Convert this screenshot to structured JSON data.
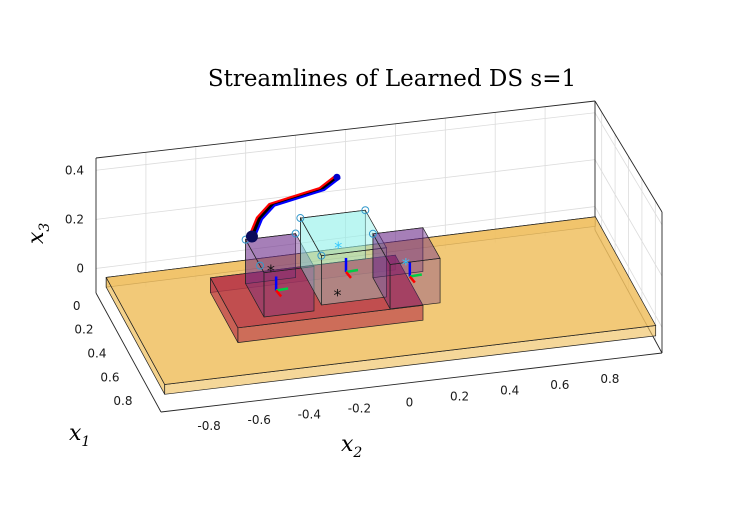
{
  "chart_data": {
    "type": "3d-streamlines",
    "title": "Streamlines of Learned DS s=1",
    "xlabel_main": "x",
    "xlabel_sub": "1",
    "ylabel_main": "x",
    "ylabel_sub": "2",
    "zlabel_main": "x",
    "zlabel_sub": "3",
    "x_ticks": [
      "0",
      "0.2",
      "0.4",
      "0.6",
      "0.8"
    ],
    "y_ticks": [
      "-0.8",
      "-0.6",
      "-0.4",
      "-0.2",
      "0",
      "0.2",
      "0.4",
      "0.6",
      "0.8"
    ],
    "z_ticks": [
      "0",
      "0.2",
      "0.4"
    ],
    "grid": true,
    "colors": {
      "table": "#f0c060",
      "platform": "#b83848",
      "box_left": "#6a2a8a",
      "box_center": "#8ff0e8",
      "box_right": "#6a2a8a",
      "streamline_red": "#ff0000",
      "streamline_blue": "#0000ff",
      "streamline_black": "#000000"
    }
  }
}
